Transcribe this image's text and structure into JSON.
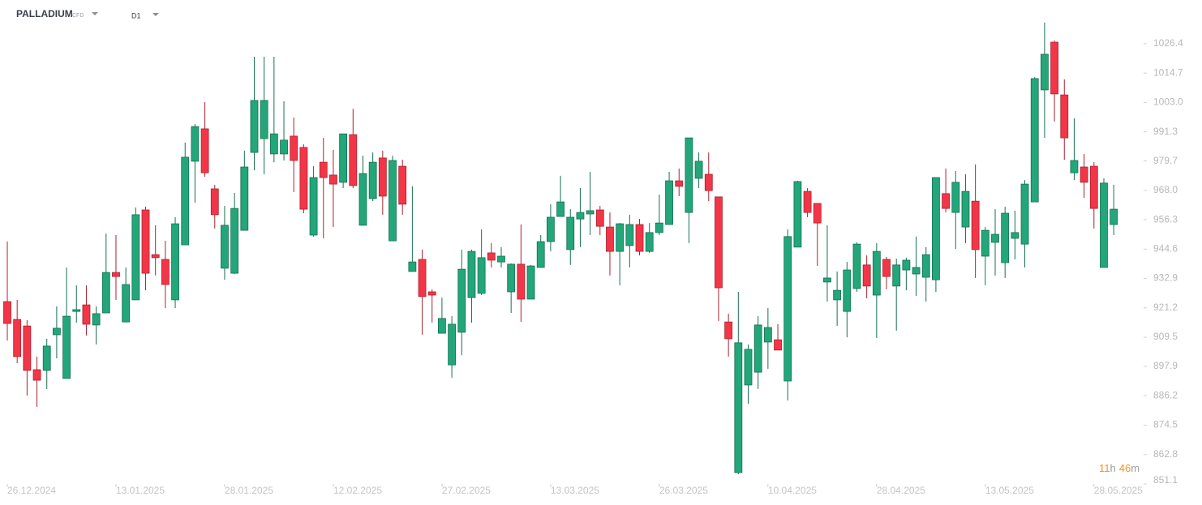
{
  "header": {
    "instrument": "PALLADIUM",
    "instrument_type": "CFD",
    "timeframe": "D1"
  },
  "countdown": {
    "hours": 11,
    "hours_unit": "h",
    "minutes": 46,
    "minutes_unit": "m"
  },
  "chart_data": {
    "type": "candlestick",
    "categories": [
      "26.12.2024",
      null,
      null,
      null,
      null,
      null,
      null,
      null,
      null,
      null,
      null,
      "13.01.2025",
      null,
      null,
      null,
      null,
      null,
      null,
      null,
      null,
      null,
      null,
      "28.01.2025",
      null,
      null,
      null,
      null,
      null,
      null,
      null,
      null,
      null,
      null,
      "12.02.2025",
      null,
      null,
      null,
      null,
      null,
      null,
      null,
      null,
      null,
      null,
      "27.02.2025",
      null,
      null,
      null,
      null,
      null,
      null,
      null,
      null,
      null,
      null,
      "13.03.2025",
      null,
      null,
      null,
      null,
      null,
      null,
      null,
      null,
      null,
      null,
      "26.03.2025",
      null,
      null,
      null,
      null,
      null,
      null,
      null,
      null,
      null,
      null,
      "10.04.2025",
      null,
      null,
      null,
      null,
      null,
      null,
      null,
      null,
      null,
      null,
      "28.04.2025",
      null,
      null,
      null,
      null,
      null,
      null,
      null,
      null,
      null,
      null,
      "13.05.2025",
      null,
      null,
      null,
      null,
      null,
      null,
      null,
      null,
      null,
      null,
      "28.05.2025",
      null,
      null
    ],
    "open": [
      923.7,
      916.6,
      914.0,
      896.6,
      896.3,
      910.5,
      893.1,
      919.8,
      922.4,
      914.4,
      919.2,
      935.3,
      915.6,
      924.4,
      960.2,
      942.4,
      940.5,
      924.4,
      946.3,
      979.6,
      992.5,
      968.6,
      937.0,
      935.0,
      952.1,
      983.1,
      988.6,
      982.5,
      982.5,
      989.6,
      985.1,
      950.2,
      979.2,
      974.1,
      971.2,
      990.2,
      954.1,
      964.7,
      980.9,
      947.9,
      977.6,
      935.7,
      940.5,
      927.6,
      911.1,
      898.5,
      911.5,
      925.3,
      927.0,
      943.1,
      939.5,
      927.6,
      938.6,
      924.7,
      937.3,
      947.6,
      957.6,
      944.4,
      956.6,
      958.6,
      960.2,
      953.4,
      943.7,
      946.0,
      954.4,
      943.7,
      951.2,
      954.4,
      971.8,
      959.2,
      972.8,
      974.4,
      965.4,
      915.6,
      855.6,
      890.5,
      895.6,
      907.6,
      908.5,
      892.1,
      945.4,
      967.6,
      962.8,
      931.5,
      924.4,
      919.8,
      928.9,
      938.3,
      926.3,
      940.5,
      929.9,
      936.3,
      934.7,
      933.4,
      932.4,
      966.7,
      959.2,
      953.4,
      963.7,
      941.8,
      947.3,
      939.2,
      948.9,
      946.6,
      963.4,
      1008.0,
      1027.0,
      1006.0,
      975.0,
      977.3,
      977.6,
      937.3,
      954.4
    ],
    "high": [
      947.6,
      924.4,
      916.3,
      901.8,
      908.9,
      921.8,
      937.3,
      930.2,
      930.2,
      921.8,
      950.8,
      950.2,
      937.3,
      961.2,
      961.5,
      954.1,
      947.9,
      957.3,
      987.0,
      994.4,
      1003.1,
      970.2,
      961.8,
      967.0,
      983.8,
      1021.2,
      1021.2,
      1021.2,
      1003.5,
      997.0,
      986.3,
      977.6,
      988.9,
      984.1,
      990.5,
      1000.5,
      981.8,
      983.1,
      983.8,
      981.8,
      980.2,
      969.6,
      944.4,
      928.6,
      925.3,
      917.9,
      944.4,
      944.4,
      952.5,
      947.0,
      945.4,
      938.9,
      954.4,
      938.3,
      950.2,
      962.5,
      973.8,
      960.5,
      968.9,
      975.4,
      961.8,
      959.2,
      955.0,
      958.3,
      956.6,
      955.0,
      966.3,
      975.4,
      976.7,
      988.9,
      983.1,
      983.1,
      965.4,
      918.9,
      927.6,
      906.6,
      917.9,
      921.1,
      914.7,
      952.5,
      971.8,
      968.9,
      962.8,
      954.1,
      935.7,
      939.5,
      947.3,
      942.1,
      947.0,
      941.5,
      940.8,
      941.2,
      949.6,
      945.4,
      973.1,
      976.7,
      975.7,
      974.4,
      978.3,
      953.4,
      960.5,
      961.5,
      959.9,
      972.1,
      1013.1,
      1034.8,
      1027.7,
      1012.2,
      996.7,
      982.5,
      979.2,
      972.8,
      970.2
    ],
    "low": [
      908.2,
      899.2,
      886.3,
      881.8,
      888.9,
      901.1,
      893.1,
      915.3,
      910.2,
      906.6,
      919.2,
      924.4,
      915.6,
      924.4,
      928.2,
      934.1,
      921.1,
      921.1,
      946.3,
      963.1,
      973.4,
      952.8,
      932.4,
      934.7,
      952.1,
      976.0,
      974.4,
      979.2,
      979.9,
      967.3,
      958.9,
      949.6,
      948.9,
      953.4,
      968.9,
      968.9,
      954.1,
      963.7,
      958.3,
      947.9,
      958.3,
      935.7,
      910.5,
      915.3,
      911.1,
      893.4,
      902.4,
      915.3,
      926.3,
      937.3,
      937.3,
      919.2,
      915.6,
      924.7,
      937.3,
      943.7,
      957.6,
      938.3,
      945.4,
      950.2,
      950.2,
      934.1,
      930.2,
      937.3,
      942.1,
      943.1,
      950.2,
      954.4,
      965.7,
      947.0,
      968.9,
      963.7,
      916.0,
      901.8,
      855.0,
      883.0,
      888.9,
      896.9,
      904.4,
      884.3,
      945.4,
      957.3,
      937.9,
      923.7,
      914.0,
      909.5,
      927.6,
      925.0,
      909.2,
      928.6,
      912.1,
      928.2,
      926.0,
      923.7,
      927.6,
      959.2,
      944.7,
      947.0,
      933.1,
      930.2,
      934.1,
      933.1,
      940.5,
      937.3,
      963.4,
      988.9,
      995.4,
      980.2,
      972.1,
      965.0,
      952.8,
      937.3,
      950.2
    ],
    "close": [
      915.0,
      901.8,
      896.3,
      892.4,
      906.0,
      913.1,
      917.9,
      920.5,
      914.7,
      918.9,
      935.3,
      933.7,
      930.5,
      958.3,
      935.0,
      941.2,
      930.5,
      954.7,
      981.2,
      993.4,
      975.0,
      958.3,
      954.1,
      960.8,
      977.3,
      1003.8,
      1003.8,
      990.5,
      988.0,
      979.9,
      960.5,
      973.1,
      973.1,
      970.5,
      990.5,
      969.9,
      974.7,
      979.2,
      965.7,
      979.9,
      962.5,
      939.5,
      925.7,
      926.3,
      917.0,
      914.7,
      936.6,
      943.7,
      941.2,
      940.2,
      941.8,
      938.6,
      924.7,
      937.9,
      947.6,
      957.3,
      963.4,
      957.3,
      959.2,
      959.9,
      953.7,
      943.7,
      954.7,
      954.4,
      943.7,
      951.2,
      955.0,
      971.8,
      969.6,
      988.9,
      979.6,
      967.9,
      929.2,
      908.9,
      907.3,
      904.7,
      914.4,
      913.4,
      904.4,
      949.6,
      971.5,
      959.2,
      955.0,
      933.1,
      928.2,
      936.3,
      946.6,
      929.9,
      943.7,
      933.7,
      938.3,
      940.2,
      937.3,
      942.4,
      973.1,
      960.8,
      971.2,
      967.6,
      944.4,
      952.1,
      950.5,
      958.9,
      951.2,
      970.5,
      1012.5,
      1022.2,
      1006.4,
      988.9,
      979.9,
      971.2,
      960.8,
      970.9,
      960.5
    ],
    "up_color": "#22a67a",
    "down_color": "#f23648",
    "ylim": [
      851.1,
      1043.8
    ],
    "yticks": [
      1026.4,
      1014.7,
      {
        "value": 1003,
        "label": "1003.0"
      },
      991.3,
      979.7,
      {
        "value": 968,
        "label": "968.0"
      },
      956.3,
      944.6,
      932.9,
      921.2,
      909.5,
      897.9,
      886.2,
      874.5,
      862.8,
      851.1
    ]
  }
}
